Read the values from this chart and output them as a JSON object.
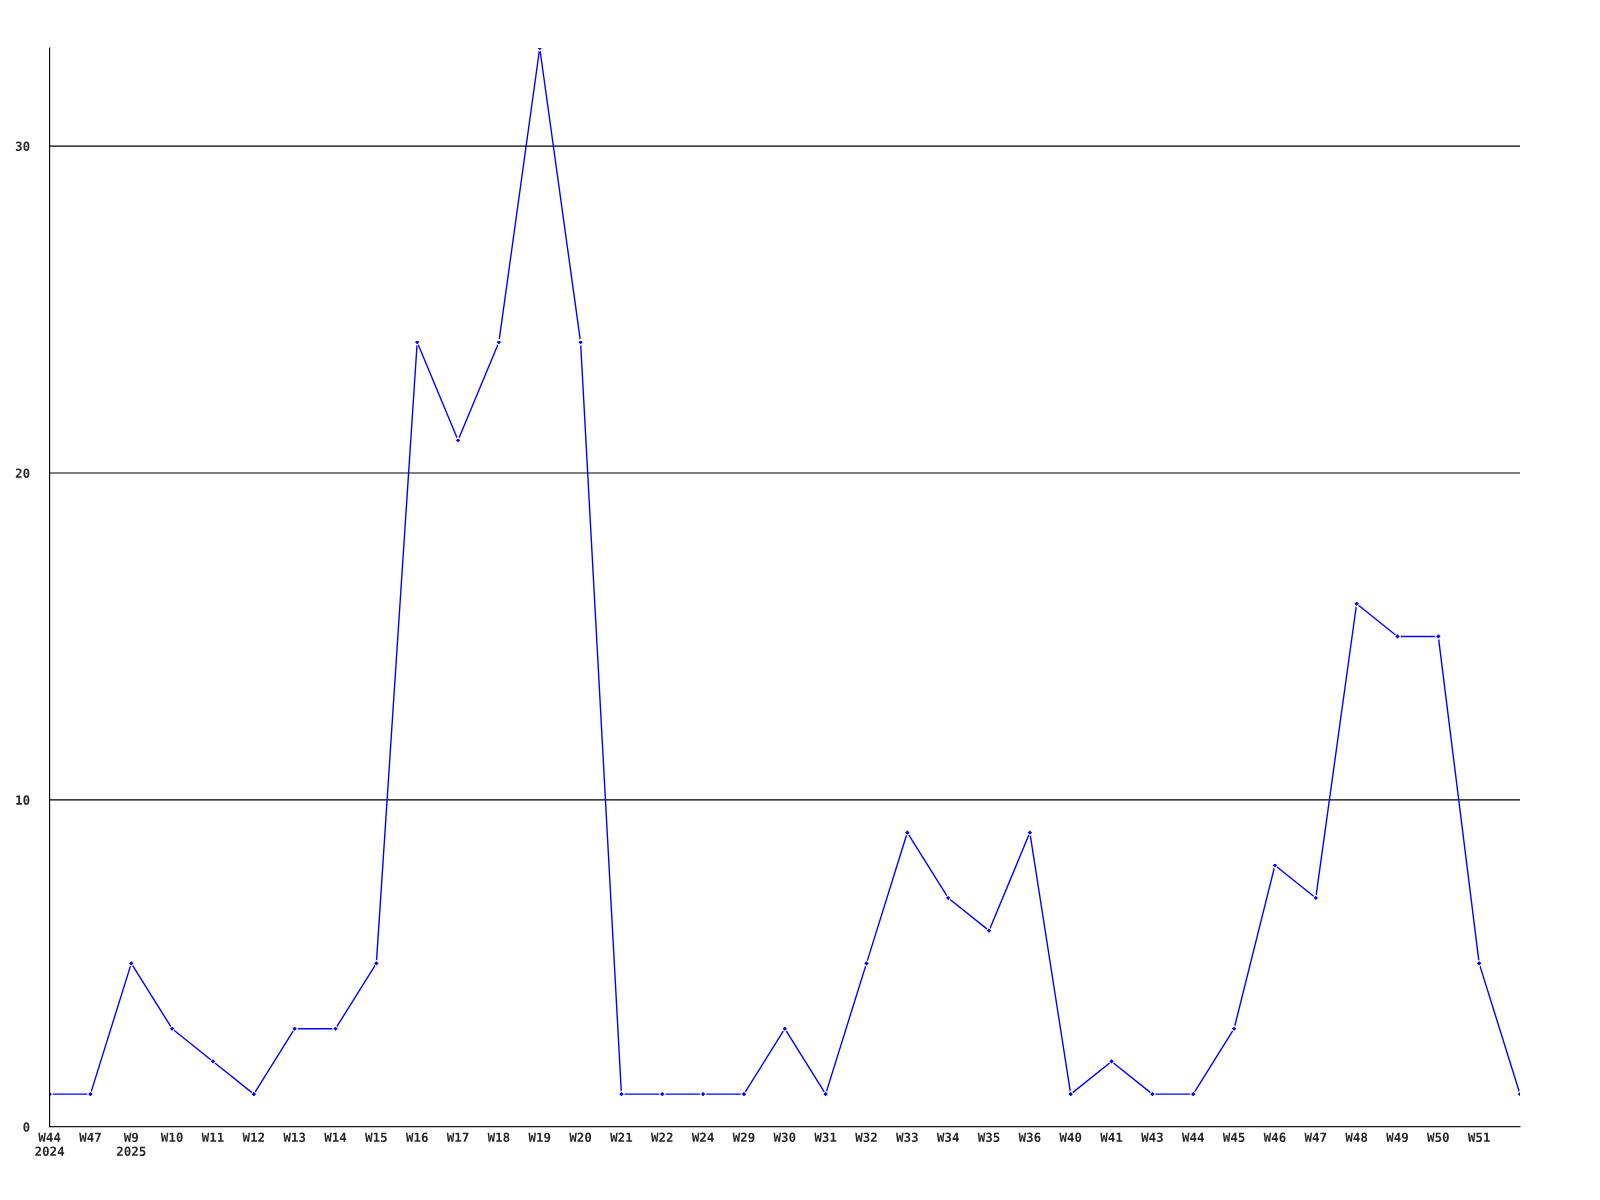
{
  "chart_data": {
    "type": "line",
    "categories": [
      "W44\n2024",
      "W47",
      "W9\n2025",
      "W10",
      "W11",
      "W12",
      "W13",
      "W14",
      "W15",
      "W16",
      "W17",
      "W18",
      "W19",
      "W20",
      "W21",
      "W22",
      "W24",
      "W29",
      "W30",
      "W31",
      "W32",
      "W33",
      "W34",
      "W35",
      "W36",
      "W40",
      "W41",
      "W43",
      "W44",
      "W45",
      "W46",
      "W47",
      "W48",
      "W49",
      "W50",
      "W51",
      null
    ],
    "series": [
      {
        "color": "#0000ff",
        "values": [
          1,
          1,
          5,
          3,
          2,
          1,
          3,
          3,
          5,
          24,
          21,
          24,
          33,
          24,
          1,
          1,
          1,
          1,
          3,
          1,
          5,
          9,
          7,
          6,
          9,
          1,
          2,
          1,
          1,
          3,
          8,
          7,
          16,
          15,
          15,
          5,
          1
        ]
      }
    ],
    "ylim": [
      0,
      33
    ],
    "yticks": [
      0,
      10,
      20,
      30
    ],
    "grid": "y",
    "marker": "diamond",
    "line_style": "solid"
  }
}
